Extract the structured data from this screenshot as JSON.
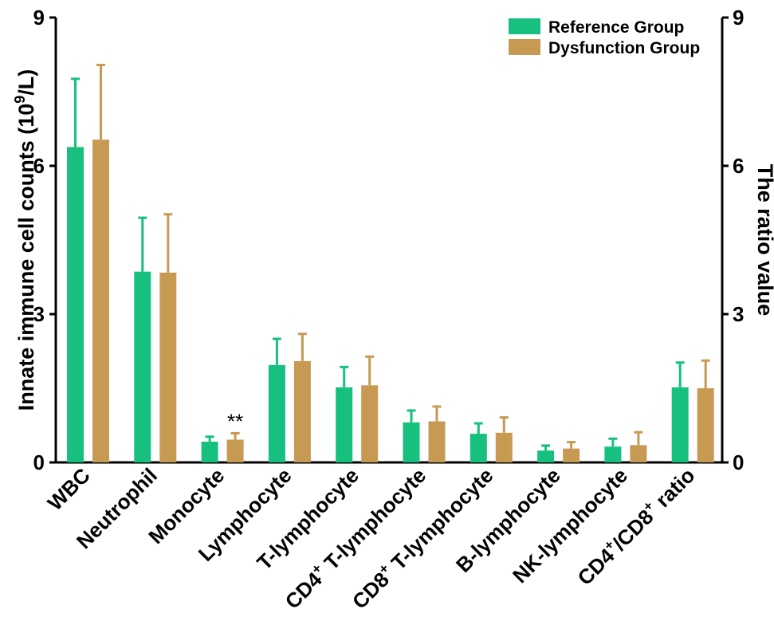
{
  "chart_data": {
    "type": "bar",
    "categories": [
      {
        "pre": "WBC",
        "sup": "",
        "post": ""
      },
      {
        "pre": "Neutrophil",
        "sup": "",
        "post": ""
      },
      {
        "pre": "Monocyte",
        "sup": "",
        "post": ""
      },
      {
        "pre": "Lymphocyte",
        "sup": "",
        "post": ""
      },
      {
        "pre": "T-lymphocyte",
        "sup": "",
        "post": ""
      },
      {
        "pre": "CD4",
        "sup": "+",
        "post": " T-lymphocyte"
      },
      {
        "pre": "CD8",
        "sup": "+",
        "post": " T-lymphocyte"
      },
      {
        "pre": "B-lymphocyte",
        "sup": "",
        "post": ""
      },
      {
        "pre": "NK-lymphocyte",
        "sup": "",
        "post": ""
      },
      {
        "pre": "CD4",
        "sup": "+",
        "post": "/CD8",
        "sup2": "+",
        "post2": " ratio"
      }
    ],
    "series": [
      {
        "name": "Reference Group",
        "color": "#17c07e",
        "values": [
          6.38,
          3.86,
          0.42,
          1.97,
          1.52,
          0.81,
          0.58,
          0.24,
          0.32,
          1.52
        ],
        "errors": [
          1.38,
          1.09,
          0.1,
          0.53,
          0.41,
          0.24,
          0.21,
          0.1,
          0.16,
          0.5
        ]
      },
      {
        "name": "Dysfunction Group",
        "color": "#c79a54",
        "values": [
          6.53,
          3.84,
          0.46,
          2.05,
          1.56,
          0.83,
          0.6,
          0.28,
          0.35,
          1.5
        ],
        "errors": [
          1.51,
          1.18,
          0.13,
          0.55,
          0.58,
          0.3,
          0.31,
          0.13,
          0.26,
          0.56
        ]
      }
    ],
    "ylabel": {
      "pre": "Innate immune cell counts (10",
      "sup": "9",
      "post": "/L)"
    },
    "ylabel_right": "The ratio value",
    "ylim": [
      0,
      9
    ],
    "yticks": [
      "0",
      "3",
      "6",
      "9"
    ],
    "yticks_right": [
      "0",
      "3",
      "6",
      "9"
    ],
    "annotations": [
      {
        "category_index": 2,
        "series_index": 1,
        "text": "**"
      }
    ],
    "legend_position": "top-right",
    "grid": false
  }
}
